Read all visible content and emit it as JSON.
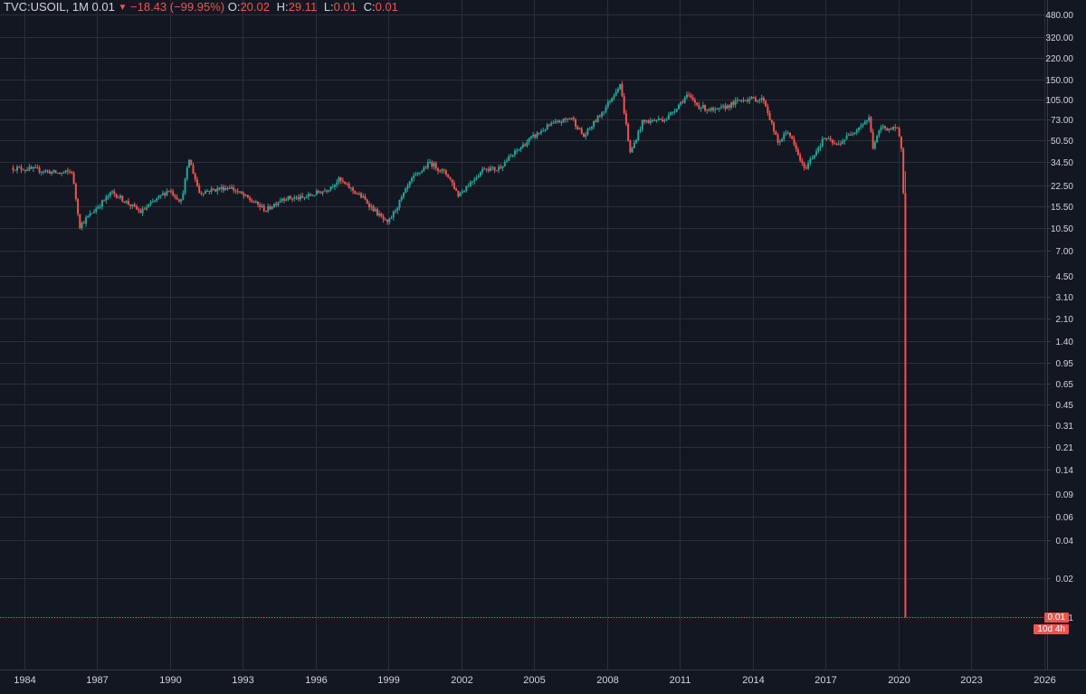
{
  "legend": {
    "symbol": "TVC:USOIL",
    "interval": "1M",
    "last": "0.01",
    "change": "−18.43 (−99.95%)",
    "o_label": "O:",
    "o": "20.02",
    "h_label": "H:",
    "h": "29.11",
    "l_label": "L:",
    "l": "0.01",
    "c_label": "C:",
    "c": "0.01"
  },
  "price_tag": {
    "price": "0.01",
    "countdown": "10d 4h"
  },
  "colors": {
    "background": "#131722",
    "grid": "#2a2e39",
    "up": "#26a69a",
    "down": "#ef5350",
    "text": "#d1d4dc"
  },
  "chart_data": {
    "type": "candlestick",
    "y_scale": "log",
    "y_ticks": [
      "480.00",
      "320.00",
      "220.00",
      "150.00",
      "105.00",
      "73.00",
      "50.50",
      "34.50",
      "22.50",
      "15.50",
      "10.50",
      "7.00",
      "4.50",
      "3.10",
      "2.10",
      "1.40",
      "0.95",
      "0.65",
      "0.45",
      "0.31",
      "0.21",
      "0.14",
      "0.09",
      "0.06",
      "0.04",
      "0.02",
      "0.01"
    ],
    "x_ticks": [
      "1984",
      "1987",
      "1990",
      "1993",
      "1996",
      "1999",
      "2002",
      "2005",
      "2008",
      "2011",
      "2014",
      "2017",
      "2020",
      "2023",
      "2026"
    ],
    "grid": true,
    "last_price": 0.01,
    "series": [
      {
        "x": "1983-06",
        "close": 31
      },
      {
        "x": "1984-06",
        "close": 30
      },
      {
        "x": "1985-06",
        "close": 28
      },
      {
        "x": "1985-12",
        "close": 29
      },
      {
        "x": "1986-04",
        "close": 11
      },
      {
        "x": "1986-12",
        "close": 15
      },
      {
        "x": "1987-08",
        "close": 20
      },
      {
        "x": "1988-10",
        "close": 14
      },
      {
        "x": "1989-12",
        "close": 21
      },
      {
        "x": "1990-06",
        "close": 17
      },
      {
        "x": "1990-10",
        "close": 36
      },
      {
        "x": "1991-03",
        "close": 20
      },
      {
        "x": "1992-06",
        "close": 22
      },
      {
        "x": "1993-12",
        "close": 14.5
      },
      {
        "x": "1994-08",
        "close": 18
      },
      {
        "x": "1995-06",
        "close": 18
      },
      {
        "x": "1996-06",
        "close": 21
      },
      {
        "x": "1996-12",
        "close": 25
      },
      {
        "x": "1997-12",
        "close": 18
      },
      {
        "x": "1998-12",
        "close": 11.3
      },
      {
        "x": "1999-12",
        "close": 25
      },
      {
        "x": "2000-09",
        "close": 34
      },
      {
        "x": "2001-06",
        "close": 27
      },
      {
        "x": "2001-11",
        "close": 19
      },
      {
        "x": "2002-12",
        "close": 31
      },
      {
        "x": "2003-06",
        "close": 30
      },
      {
        "x": "2004-10",
        "close": 51
      },
      {
        "x": "2005-08",
        "close": 66
      },
      {
        "x": "2006-07",
        "close": 76
      },
      {
        "x": "2007-01",
        "close": 54
      },
      {
        "x": "2007-12",
        "close": 92
      },
      {
        "x": "2008-07",
        "close": 140
      },
      {
        "x": "2008-12",
        "close": 40
      },
      {
        "x": "2009-06",
        "close": 70
      },
      {
        "x": "2010-06",
        "close": 75
      },
      {
        "x": "2011-04",
        "close": 113
      },
      {
        "x": "2011-10",
        "close": 93
      },
      {
        "x": "2012-06",
        "close": 85
      },
      {
        "x": "2013-08",
        "close": 106
      },
      {
        "x": "2014-06",
        "close": 105
      },
      {
        "x": "2015-01",
        "close": 48
      },
      {
        "x": "2015-06",
        "close": 60
      },
      {
        "x": "2016-02",
        "close": 30
      },
      {
        "x": "2016-12",
        "close": 53
      },
      {
        "x": "2017-06",
        "close": 46
      },
      {
        "x": "2018-10",
        "close": 75
      },
      {
        "x": "2018-12",
        "close": 45
      },
      {
        "x": "2019-04",
        "close": 64
      },
      {
        "x": "2019-12",
        "close": 61
      },
      {
        "x": "2020-02",
        "close": 45
      },
      {
        "x": "2020-03",
        "close": 20.5
      },
      {
        "x": "2020-04",
        "close": 0.01
      }
    ]
  }
}
